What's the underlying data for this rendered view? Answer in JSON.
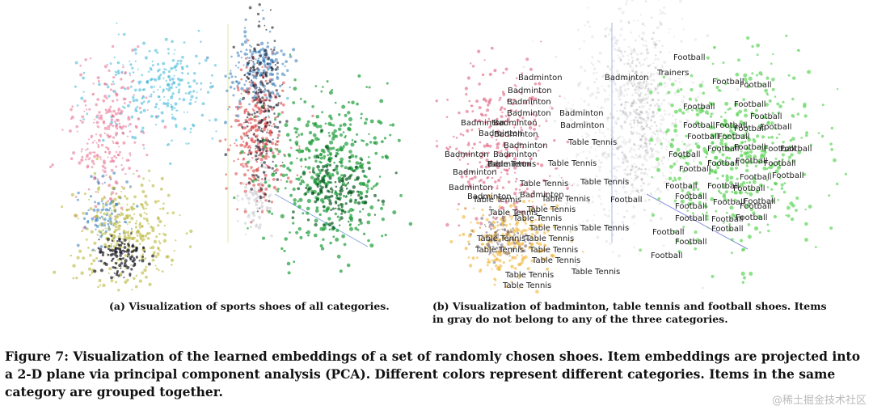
{
  "panel_a": {
    "caption": "(a) Visualization of sports shoes of all categories.",
    "clusters": [
      {
        "color": "#36b5d6",
        "category": "cyan"
      },
      {
        "color": "#e76b8e",
        "category": "pink"
      },
      {
        "color": "#b9b83a",
        "category": "olive"
      },
      {
        "color": "#2f78b8",
        "category": "blue"
      },
      {
        "color": "#d83a3a",
        "category": "red"
      },
      {
        "color": "#1c1c2e",
        "category": "dark"
      },
      {
        "color": "#cfcfd6",
        "category": "gray"
      },
      {
        "color": "#1e9e3a",
        "category": "green"
      }
    ]
  },
  "panel_b": {
    "caption": "(b) Visualization of badminton, table tennis and football shoes. Items in gray do not belong to any of the three categories.",
    "label_badminton": "Badminton",
    "label_table_tennis": "Table Tennis",
    "label_football": "Football",
    "label_trainers": "Trainers",
    "colors": {
      "badminton": "#e0607f",
      "table_tennis": "#f0b437",
      "football": "#5fd65a",
      "other": "#c8c8c8"
    }
  },
  "figure_caption": {
    "label": "Figure 7:",
    "text": " Visualization of the learned embeddings of a set of randomly chosen shoes. Item embeddings are projected into a 2-D plane via principal component analysis (PCA). Different colors represent different categories. Items in the same category are grouped together."
  },
  "watermark": "@稀土掘金技术社区"
}
